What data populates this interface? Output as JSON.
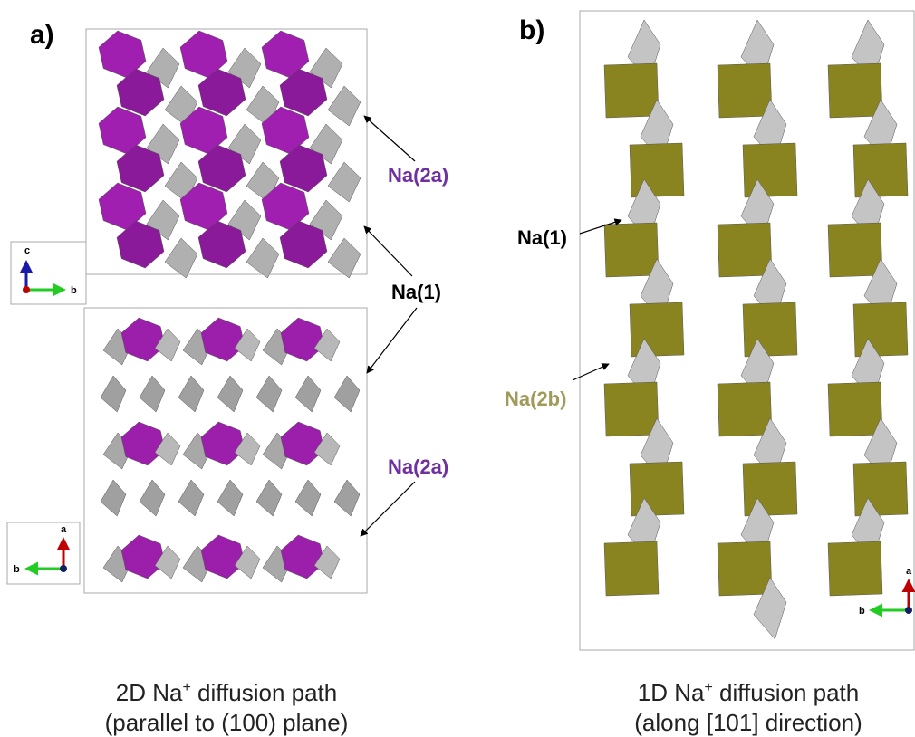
{
  "panel_a": {
    "label": "a)",
    "callouts": [
      "Na(2a)",
      "Na(1)",
      "Na(2a)"
    ],
    "top_axes": [
      "c",
      "b"
    ],
    "bottom_axes": [
      "a",
      "b"
    ],
    "caption": {
      "line1": [
        "2D Na",
        "+",
        " diffusion path"
      ],
      "line2": "(parallel to (100) plane)"
    }
  },
  "panel_b": {
    "label": "b)",
    "callouts": [
      "Na(1)",
      "Na(2b)"
    ],
    "axes": [
      "a",
      "b"
    ],
    "caption": {
      "line1": [
        "1D Na",
        "+",
        " diffusion path"
      ],
      "line2": "(along [101] direction)"
    }
  }
}
